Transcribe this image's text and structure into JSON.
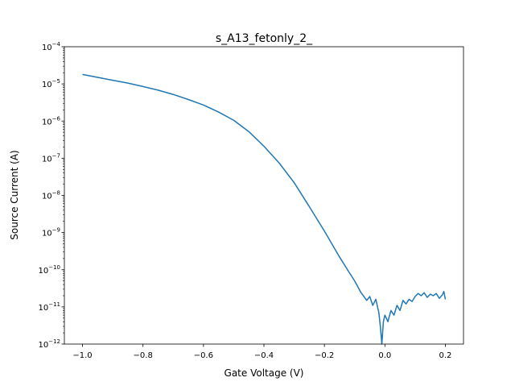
{
  "chart_data": {
    "type": "line",
    "title": "s_A13_fetonly_2_",
    "xlabel": "Gate Voltage (V)",
    "ylabel": "Source Current (A)",
    "xlim": [
      -1.06,
      0.26
    ],
    "ylim": [
      1e-12,
      0.0001
    ],
    "yscale": "log",
    "grid": false,
    "x_ticks": [
      {
        "value": -1.0,
        "label": "−1.0"
      },
      {
        "value": -0.8,
        "label": "−0.8"
      },
      {
        "value": -0.6,
        "label": "−0.6"
      },
      {
        "value": -0.4,
        "label": "−0.4"
      },
      {
        "value": -0.2,
        "label": "−0.2"
      },
      {
        "value": 0.0,
        "label": "0.0"
      },
      {
        "value": 0.2,
        "label": "0.2"
      }
    ],
    "y_ticks": [
      {
        "value": 1e-12,
        "base": "10",
        "exp": "−12"
      },
      {
        "value": 1e-11,
        "base": "10",
        "exp": "−11"
      },
      {
        "value": 1e-10,
        "base": "10",
        "exp": "−10"
      },
      {
        "value": 1e-09,
        "base": "10",
        "exp": "−9"
      },
      {
        "value": 1e-08,
        "base": "10",
        "exp": "−8"
      },
      {
        "value": 1e-07,
        "base": "10",
        "exp": "−7"
      },
      {
        "value": 1e-06,
        "base": "10",
        "exp": "−6"
      },
      {
        "value": 1e-05,
        "base": "10",
        "exp": "−5"
      },
      {
        "value": 0.0001,
        "base": "10",
        "exp": "−4"
      }
    ],
    "series": [
      {
        "color": "#1f77b4",
        "points": [
          [
            -1.0,
            1.8e-05
          ],
          [
            -0.95,
            1.5e-05
          ],
          [
            -0.9,
            1.25e-05
          ],
          [
            -0.85,
            1.05e-05
          ],
          [
            -0.8,
            8.5e-06
          ],
          [
            -0.75,
            6.8e-06
          ],
          [
            -0.7,
            5.2e-06
          ],
          [
            -0.65,
            3.8e-06
          ],
          [
            -0.6,
            2.7e-06
          ],
          [
            -0.55,
            1.75e-06
          ],
          [
            -0.5,
            1.05e-06
          ],
          [
            -0.45,
            5.2e-07
          ],
          [
            -0.4,
            2.1e-07
          ],
          [
            -0.35,
            7.5e-08
          ],
          [
            -0.3,
            2.2e-08
          ],
          [
            -0.25,
            5e-09
          ],
          [
            -0.2,
            1.1e-09
          ],
          [
            -0.15,
            2.2e-10
          ],
          [
            -0.12,
            9e-11
          ],
          [
            -0.1,
            5e-11
          ],
          [
            -0.08,
            2.5e-11
          ],
          [
            -0.06,
            1.5e-11
          ],
          [
            -0.05,
            1.9e-11
          ],
          [
            -0.04,
            1.1e-11
          ],
          [
            -0.03,
            1.6e-11
          ],
          [
            -0.02,
            7e-12
          ],
          [
            -0.015,
            3e-12
          ],
          [
            -0.01,
            1e-12
          ],
          [
            -0.005,
            4e-12
          ],
          [
            0.0,
            6e-12
          ],
          [
            0.01,
            4e-12
          ],
          [
            0.02,
            8e-12
          ],
          [
            0.03,
            6e-12
          ],
          [
            0.04,
            1.1e-11
          ],
          [
            0.05,
            8e-12
          ],
          [
            0.06,
            1.5e-11
          ],
          [
            0.07,
            1.2e-11
          ],
          [
            0.08,
            1.6e-11
          ],
          [
            0.09,
            1.4e-11
          ],
          [
            0.1,
            1.9e-11
          ],
          [
            0.11,
            2.3e-11
          ],
          [
            0.12,
            2e-11
          ],
          [
            0.13,
            2.4e-11
          ],
          [
            0.14,
            1.8e-11
          ],
          [
            0.15,
            2.2e-11
          ],
          [
            0.16,
            2e-11
          ],
          [
            0.17,
            2.3e-11
          ],
          [
            0.18,
            1.7e-11
          ],
          [
            0.19,
            2.1e-11
          ],
          [
            0.195,
            2.6e-11
          ],
          [
            0.2,
            1.6e-11
          ]
        ]
      }
    ]
  }
}
